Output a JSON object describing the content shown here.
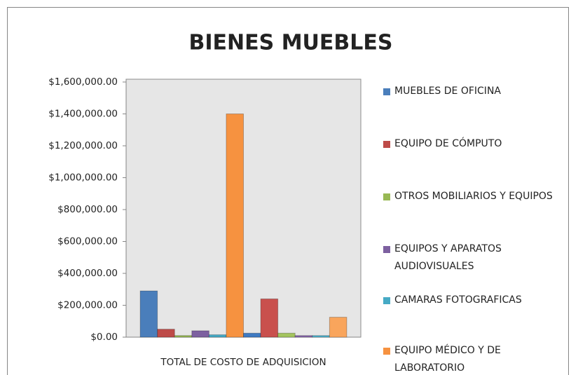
{
  "chart_data": {
    "type": "bar",
    "title": "BIENES MUEBLES",
    "categories": [
      "TOTAL DE COSTO DE ADQUISICION"
    ],
    "series": [
      {
        "name": "MUEBLES DE OFICINA",
        "color": "#4a7ebb",
        "values": [
          290000
        ]
      },
      {
        "name": "EQUIPO DE CÓMPUTO",
        "color": "#be4b48",
        "values": [
          50000
        ]
      },
      {
        "name": "OTROS MOBILIARIOS Y EQUIPOS",
        "color": "#98b954",
        "values": [
          10000
        ]
      },
      {
        "name": "EQUIPOS Y APARATOS AUDIOVISUALES",
        "color": "#7d60a0",
        "values": [
          40000
        ]
      },
      {
        "name": "CAMARAS FOTOGRAFICAS",
        "color": "#46aac5",
        "values": [
          15000
        ]
      },
      {
        "name": "EQUIPO MÉDICO Y DE LABORATORIO",
        "color": "#f69240",
        "values": [
          1400000
        ]
      },
      {
        "color": "#3f7ac2",
        "values": [
          25000
        ]
      },
      {
        "color": "#c9504d",
        "values": [
          240000
        ]
      },
      {
        "color": "#a3c45e",
        "values": [
          25000
        ]
      },
      {
        "color": "#8767ab",
        "values": [
          10000
        ]
      },
      {
        "color": "#4fb2cd",
        "values": [
          10000
        ]
      },
      {
        "color": "#f9a55c",
        "values": [
          125000
        ]
      }
    ],
    "ylim": [
      0,
      1600000
    ],
    "yticks": [
      {
        "value": 0,
        "label": "$0.00"
      },
      {
        "value": 200000,
        "label": "$200,000.00"
      },
      {
        "value": 400000,
        "label": "$400,000.00"
      },
      {
        "value": 600000,
        "label": "$600,000.00"
      },
      {
        "value": 800000,
        "label": "$800,000.00"
      },
      {
        "value": 1000000,
        "label": "$1,000,000.00"
      },
      {
        "value": 1200000,
        "label": "$1,200,000.00"
      },
      {
        "value": 1400000,
        "label": "$1,400,000.00"
      },
      {
        "value": 1600000,
        "label": "$1,600,000.00"
      }
    ],
    "grid": false
  }
}
